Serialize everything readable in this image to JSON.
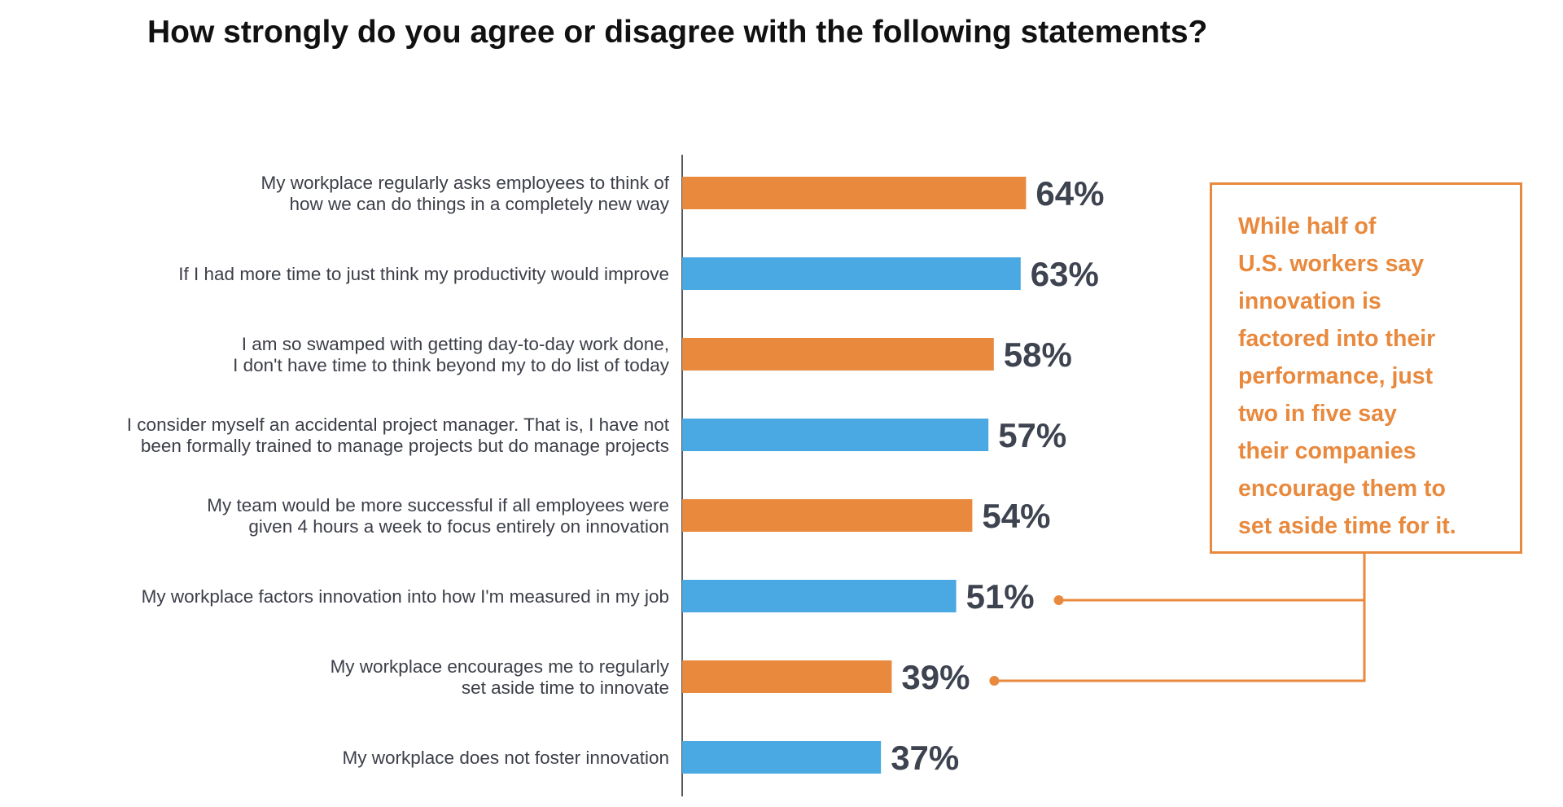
{
  "title": "How strongly do you agree or disagree with the following statements?",
  "colors": {
    "orange": "#e8893d",
    "blue": "#4aa8e2",
    "axis": "#555a60",
    "value_text": "#3e4350",
    "label_text": "#3c3f48"
  },
  "chart_data": {
    "type": "bar",
    "orientation": "horizontal",
    "title": "How strongly do you agree or disagree with the following statements?",
    "xlabel": "",
    "ylabel": "",
    "xlim": [
      0,
      100
    ],
    "unit": "%",
    "grid": false,
    "categories": [
      [
        "My workplace regularly asks employees to think of",
        "how we can do things in a completely new way"
      ],
      [
        "If I had more time to just think my productivity would improve"
      ],
      [
        "I am so swamped with getting day-to-day work done,",
        "I don't have time to think beyond my to do list of today"
      ],
      [
        "I consider myself an accidental project manager. That is, I have not",
        "been formally trained to manage projects but do manage projects"
      ],
      [
        "My team would be more successful if all employees were",
        "given 4 hours a week to focus entirely on innovation"
      ],
      [
        "My workplace factors innovation into how I'm measured in my job"
      ],
      [
        "My workplace encourages me to regularly",
        "set aside time to innovate"
      ],
      [
        "My workplace does not foster innovation"
      ]
    ],
    "values": [
      64,
      63,
      58,
      57,
      54,
      51,
      39,
      37
    ],
    "value_labels": [
      "64%",
      "63%",
      "58%",
      "57%",
      "54%",
      "51%",
      "39%",
      "37%"
    ],
    "bar_colors": [
      "orange",
      "blue",
      "orange",
      "blue",
      "orange",
      "blue",
      "orange",
      "blue"
    ],
    "annotation": {
      "text": "While half of\nU.S. workers say\ninnovation is\nfactored into their\nperformance, just\ntwo in five say\ntheir companies\nencourage them to\nset aside time for it.",
      "points_to": [
        5,
        6
      ]
    }
  }
}
